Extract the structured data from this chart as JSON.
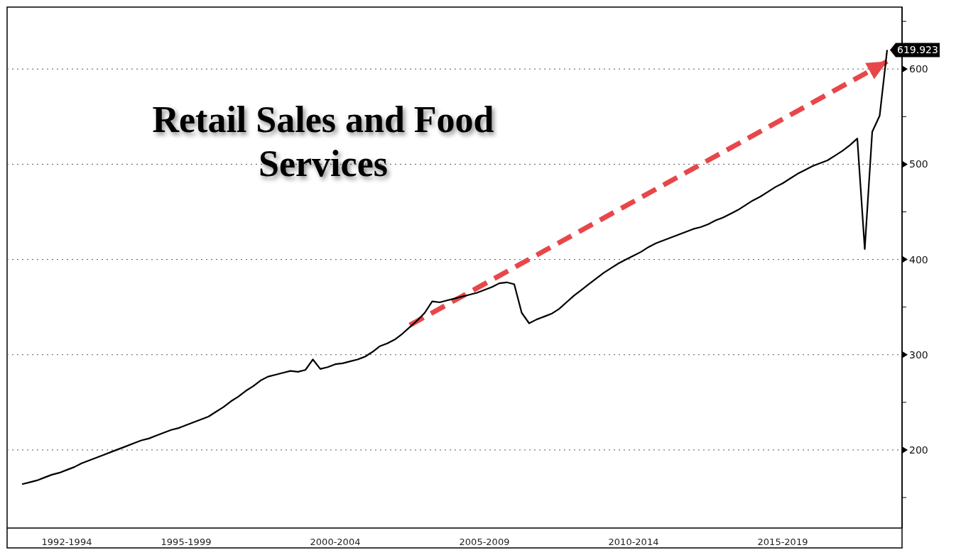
{
  "chart_data": {
    "type": "line",
    "title": "Retail Sales and Food Services",
    "categories": [
      null,
      null,
      null,
      null,
      null,
      null,
      "1992-1994",
      null,
      null,
      null,
      null,
      null,
      null,
      null,
      null,
      null,
      null,
      null,
      null,
      null,
      null,
      null,
      "1995-1999",
      null,
      null,
      null,
      null,
      null,
      null,
      null,
      null,
      null,
      null,
      null,
      null,
      null,
      null,
      null,
      null,
      null,
      null,
      null,
      "2000-2004",
      null,
      null,
      null,
      null,
      null,
      null,
      null,
      null,
      null,
      null,
      null,
      null,
      null,
      null,
      null,
      null,
      null,
      null,
      null,
      "2005-2009",
      null,
      null,
      null,
      null,
      null,
      null,
      null,
      null,
      null,
      null,
      null,
      null,
      null,
      null,
      null,
      null,
      null,
      null,
      null,
      "2010-2014",
      null,
      null,
      null,
      null,
      null,
      null,
      null,
      null,
      null,
      null,
      null,
      null,
      null,
      null,
      null,
      null,
      null,
      null,
      null,
      "2015-2019",
      null,
      null,
      null,
      null,
      null,
      null,
      null,
      null,
      null,
      null,
      null,
      null,
      null,
      null
    ],
    "ylim": [
      118,
      665
    ],
    "yticks": [
      {
        "value": 150,
        "label": null
      },
      200,
      {
        "value": 250,
        "label": null
      },
      300,
      {
        "value": 350,
        "label": null
      },
      400,
      {
        "value": 450,
        "label": null
      },
      500,
      {
        "value": 550,
        "label": null
      },
      600,
      {
        "value": 650,
        "label": null
      }
    ],
    "grid": "y",
    "line_style": "solid",
    "series": [
      {
        "color": "#000000",
        "values": [
          164,
          166,
          168,
          171,
          174,
          176,
          179,
          182,
          186,
          189,
          192,
          195,
          198,
          201,
          204,
          207,
          210,
          212,
          215,
          218,
          221,
          223,
          226,
          229,
          232,
          235,
          240,
          245,
          251,
          256,
          262,
          267,
          273,
          277,
          279,
          281,
          283,
          282,
          284,
          295,
          285,
          287,
          290,
          291,
          293,
          295,
          298,
          303,
          309,
          312,
          316,
          322,
          329,
          336,
          344,
          356,
          355,
          357,
          359,
          361,
          363,
          365,
          368,
          371,
          375,
          376,
          374,
          344,
          333,
          337,
          340,
          343,
          348,
          355,
          362,
          368,
          374,
          380,
          386,
          391,
          396,
          400,
          404,
          408,
          413,
          417,
          420,
          423,
          426,
          429,
          432,
          434,
          437,
          441,
          444,
          448,
          452,
          457,
          462,
          466,
          471,
          476,
          480,
          485,
          490,
          494,
          498,
          501,
          504,
          509,
          514,
          520,
          527,
          411,
          534,
          551,
          619.923
        ],
        "value_labels": [
          null,
          null,
          null,
          null,
          null,
          null,
          null,
          null,
          null,
          null,
          null,
          null,
          null,
          null,
          null,
          null,
          null,
          null,
          null,
          null,
          null,
          null,
          null,
          null,
          null,
          null,
          null,
          null,
          null,
          null,
          null,
          null,
          null,
          null,
          null,
          null,
          null,
          null,
          null,
          null,
          null,
          null,
          null,
          null,
          null,
          null,
          null,
          null,
          null,
          null,
          null,
          null,
          null,
          null,
          null,
          null,
          null,
          null,
          null,
          null,
          null,
          null,
          null,
          null,
          null,
          null,
          null,
          null,
          null,
          null,
          null,
          null,
          null,
          null,
          null,
          null,
          null,
          null,
          null,
          null,
          null,
          null,
          null,
          null,
          null,
          null,
          null,
          null,
          null,
          null,
          null,
          null,
          null,
          null,
          null,
          null,
          null,
          null,
          null,
          null,
          null,
          null,
          null,
          null,
          null,
          null,
          null,
          null,
          null,
          null,
          null,
          null,
          null,
          null,
          null,
          null,
          "619.923"
        ]
      },
      {
        "color": "#e8474a",
        "line_style": "dashed",
        "values": [
          null,
          null,
          null,
          null,
          null,
          null,
          null,
          null,
          null,
          null,
          null,
          null,
          null,
          null,
          null,
          null,
          null,
          null,
          null,
          null,
          null,
          null,
          null,
          null,
          null,
          null,
          null,
          null,
          null,
          null,
          null,
          null,
          null,
          null,
          null,
          null,
          null,
          null,
          null,
          null,
          null,
          null,
          null,
          null,
          null,
          null,
          null,
          null,
          null,
          null,
          null,
          null,
          331,
          null,
          null,
          null,
          null,
          null,
          null,
          null,
          null,
          null,
          null,
          null,
          null,
          null,
          null,
          null,
          null,
          null,
          null,
          null,
          null,
          null,
          null,
          null,
          null,
          null,
          null,
          null,
          null,
          null,
          null,
          null,
          null,
          null,
          null,
          null,
          null,
          null,
          null,
          null,
          null,
          null,
          null,
          null,
          null,
          null,
          null,
          null,
          null,
          null,
          null,
          null,
          null,
          null,
          null,
          null,
          null,
          null,
          null,
          null,
          null,
          null,
          null,
          null,
          608
        ]
      }
    ]
  }
}
